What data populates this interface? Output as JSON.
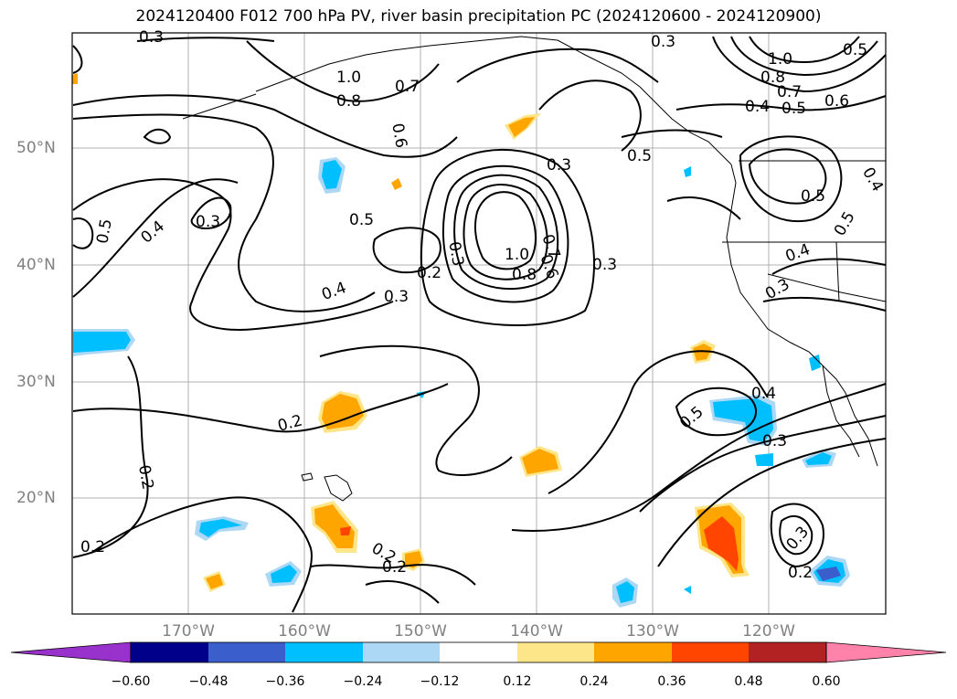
{
  "title": "2024120400 F012 700 hPa PV, river basin precipitation PC (2024120600 - 2024120900)",
  "map": {
    "lat_labels": [
      "50°N",
      "40°N",
      "30°N",
      "20°N"
    ],
    "lon_labels": [
      "170°W",
      "160°W",
      "150°W",
      "140°W",
      "130°W",
      "120°W"
    ],
    "contour_labels": [
      "0.3",
      "1.0",
      "0.8",
      "0.7",
      "0.6",
      "0.3",
      "0.3",
      "1.0",
      "0.8",
      "0.7",
      "0.5",
      "0.4",
      "0.5",
      "0.6",
      "0.5",
      "0.4",
      "0.3",
      "0.5",
      "0.4",
      "0.3",
      "0.2",
      "0.5",
      "1.0",
      "0.8",
      "0.7",
      "0.6",
      "0.3",
      "0.4",
      "0.3",
      "0.4",
      "0.5",
      "0.3",
      "0.2",
      "0.2",
      "0.2",
      "0.2",
      "0.2",
      "0.3",
      "0.2",
      "0.5",
      "0.4",
      "0.3",
      "0.5"
    ],
    "contour_variable": "700 hPa PV",
    "shading_variable": "river basin precipitation PC"
  },
  "colorbar": {
    "ticks": [
      "−0.60",
      "−0.48",
      "−0.36",
      "−0.24",
      "−0.12",
      "0.12",
      "0.24",
      "0.36",
      "0.48",
      "0.60"
    ],
    "colors": [
      "#9932cc",
      "#00008b",
      "#3a5fcd",
      "#00bfff",
      "#add8f5",
      "#ffffff",
      "#fde68a",
      "#ffa500",
      "#ff4500",
      "#b22222",
      "#ff82ab"
    ]
  }
}
